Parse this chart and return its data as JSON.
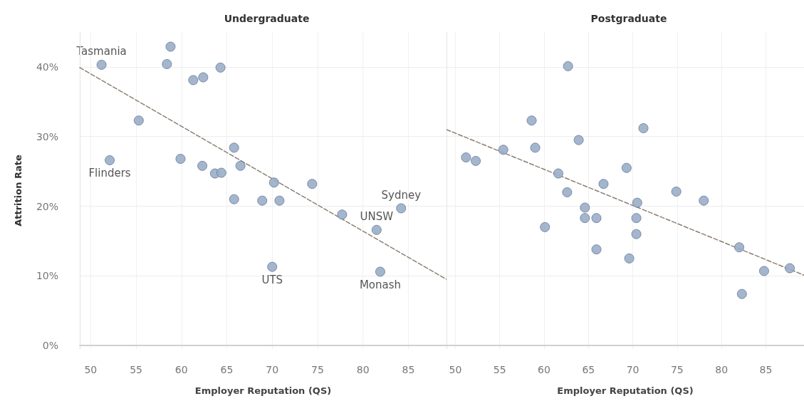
{
  "chart_data": [
    {
      "type": "scatter",
      "title": "Undergraduate",
      "xlabel": "Employer Reputation (QS)",
      "ylabel": "Attrition Rate",
      "marker": "circle",
      "grid": true,
      "xlim": [
        48.8,
        89.2
      ],
      "xticks": [
        50,
        55,
        60,
        65,
        70,
        75,
        80,
        85
      ],
      "ylim": [
        -0.5,
        45
      ],
      "yticks": [
        {
          "value": 0,
          "label": "0%"
        },
        {
          "value": 10,
          "label": "10%"
        },
        {
          "value": 20,
          "label": "20%"
        },
        {
          "value": 30,
          "label": "30%"
        },
        {
          "value": 40,
          "label": "40%"
        }
      ],
      "series": [
        {
          "color": "#9aaec8",
          "x": [
            51.2,
            52.1,
            55.3,
            58.4,
            58.8,
            59.9,
            61.3,
            62.4,
            62.3,
            64.3,
            63.7,
            64.4,
            65.8,
            65.8,
            66.5,
            68.9,
            70.2,
            70.8,
            70.0,
            74.4,
            77.7,
            81.5,
            81.9,
            84.2
          ],
          "values": [
            40.3,
            26.6,
            32.3,
            40.4,
            42.9,
            26.8,
            38.1,
            38.5,
            25.8,
            39.9,
            24.7,
            24.8,
            28.4,
            21.0,
            25.8,
            20.8,
            23.4,
            20.8,
            11.3,
            23.2,
            18.8,
            16.6,
            10.6,
            19.7
          ]
        },
        {
          "type": "line",
          "color": "#8c7f72",
          "line_style": "dashed",
          "marker": "none",
          "x": [
            48.8,
            89.2
          ],
          "values": [
            39.9,
            9.5
          ]
        }
      ],
      "annotations": [
        {
          "text": "Tasmania",
          "x": 51.2,
          "y": 40.3
        },
        {
          "text": "Flinders",
          "x": 52.1,
          "y": 26.6
        },
        {
          "text": "UTS",
          "x": 70.0,
          "y": 11.3
        },
        {
          "text": "Monash",
          "x": 81.9,
          "y": 10.6
        },
        {
          "text": "UNSW",
          "x": 81.5,
          "y": 16.6
        },
        {
          "text": "Sydney",
          "x": 84.2,
          "y": 19.7
        }
      ]
    },
    {
      "type": "scatter",
      "title": "Postgraduate",
      "xlabel": "Employer Reputation (QS)",
      "marker": "circle",
      "grid": true,
      "tick_labels": "x",
      "xlim": [
        49,
        89.3
      ],
      "xticks": [
        50,
        55,
        60,
        65,
        70,
        75,
        80,
        85
      ],
      "ylim": [
        -0.5,
        45
      ],
      "yticks": [
        0,
        10,
        20,
        30,
        40
      ],
      "series": [
        {
          "color": "#9aaec8",
          "x": [
            51.2,
            52.3,
            55.4,
            58.6,
            59.0,
            62.7,
            63.9,
            61.6,
            62.6,
            60.1,
            64.6,
            64.6,
            65.9,
            65.9,
            66.7,
            69.3,
            71.2,
            70.5,
            70.4,
            70.4,
            69.6,
            74.9,
            78.0,
            82.0,
            82.3,
            84.8,
            87.7
          ],
          "values": [
            27.0,
            26.5,
            28.1,
            32.3,
            28.4,
            40.1,
            29.5,
            24.7,
            22.0,
            17.0,
            19.8,
            18.3,
            18.3,
            13.8,
            23.2,
            25.5,
            31.2,
            20.5,
            18.3,
            16.0,
            12.5,
            22.1,
            20.8,
            14.1,
            7.4,
            10.7,
            11.1
          ]
        },
        {
          "type": "line",
          "color": "#8c7f72",
          "line_style": "dashed",
          "marker": "none",
          "x": [
            49,
            89.3
          ],
          "values": [
            31.0,
            10.1
          ]
        }
      ]
    }
  ]
}
